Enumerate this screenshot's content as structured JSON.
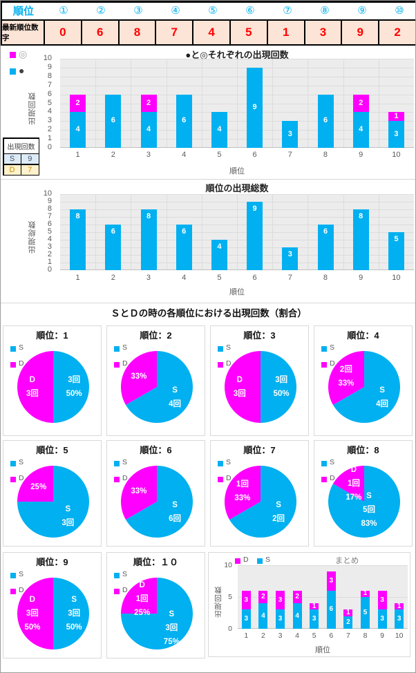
{
  "header_table": {
    "rank_label": "順位",
    "rank_symbols": [
      "①",
      "②",
      "③",
      "④",
      "⑤",
      "⑥",
      "⑦",
      "⑧",
      "⑨",
      "⑩"
    ],
    "latest_label": "最新順位数字",
    "latest_values": [
      "0",
      "6",
      "8",
      "7",
      "4",
      "5",
      "1",
      "3",
      "9",
      "2"
    ]
  },
  "side_table": {
    "header": "出現回数",
    "rows": [
      {
        "label": "S",
        "value": "9",
        "bg": "#DDEBF7",
        "fg": "#44546A"
      },
      {
        "label": "D",
        "value": "7",
        "bg": "#FFF2CC",
        "fg": "#BF8F00"
      }
    ]
  },
  "colors": {
    "cyan": "#00B0F0",
    "magenta": "#FF00FF",
    "value_red": "#FF0000",
    "header_accent": "#00B0F0",
    "peach_bg": "#FCE4D6"
  },
  "chart_data": [
    {
      "id": "symbol_counts",
      "type": "bar-stacked",
      "title": "●と◎それぞれの出現回数",
      "xlabel": "順位",
      "ylabel": "出現回数",
      "ylim": [
        0,
        10
      ],
      "categories": [
        "1",
        "2",
        "3",
        "4",
        "5",
        "6",
        "7",
        "8",
        "9",
        "10"
      ],
      "legend": [
        "◎",
        "●"
      ],
      "series": [
        {
          "name": "●",
          "color": "#00B0F0",
          "values": [
            4,
            6,
            4,
            6,
            4,
            9,
            3,
            6,
            4,
            3
          ]
        },
        {
          "name": "◎",
          "color": "#FF00FF",
          "values": [
            2,
            0,
            2,
            0,
            0,
            0,
            0,
            0,
            2,
            1
          ]
        }
      ]
    },
    {
      "id": "rank_totals",
      "type": "bar",
      "title": "順位の出現総数",
      "xlabel": "順位",
      "ylabel": "出現総数",
      "ylim": [
        0,
        10
      ],
      "categories": [
        "1",
        "2",
        "3",
        "4",
        "5",
        "6",
        "7",
        "8",
        "9",
        "10"
      ],
      "values": [
        8,
        6,
        8,
        6,
        4,
        9,
        3,
        6,
        8,
        5
      ]
    },
    {
      "id": "sd_pies",
      "type": "pie-grid",
      "section_title": "ＳとＤの時の各順位における出現回数（割合）",
      "legend": [
        "S",
        "D"
      ],
      "pies": [
        {
          "title": "順位：1",
          "s": {
            "count": 3,
            "pct": "50%",
            "label_lines": [
              "3回",
              "50%"
            ]
          },
          "d": {
            "count": 3,
            "pct": "50%",
            "label_lines": [
              "D",
              "3回"
            ]
          }
        },
        {
          "title": "順位：2",
          "s": {
            "count": 4,
            "pct": "67%",
            "label_lines": [
              "S",
              "4回"
            ]
          },
          "d": {
            "count": 2,
            "pct": "33%",
            "label_lines": [
              "33%"
            ]
          }
        },
        {
          "title": "順位：3",
          "s": {
            "count": 3,
            "pct": "50%",
            "label_lines": [
              "3回",
              "50%"
            ]
          },
          "d": {
            "count": 3,
            "pct": "50%",
            "label_lines": [
              "D",
              "3回"
            ]
          }
        },
        {
          "title": "順位：4",
          "s": {
            "count": 4,
            "pct": "67%",
            "label_lines": [
              "S",
              "4回"
            ]
          },
          "d": {
            "count": 2,
            "pct": "33%",
            "label_lines": [
              "2回",
              "33%"
            ]
          }
        },
        {
          "title": "順位：5",
          "s": {
            "count": 3,
            "pct": "75%",
            "label_lines": [
              "S",
              "3回"
            ]
          },
          "d": {
            "count": 1,
            "pct": "25%",
            "label_lines": [
              "25%"
            ]
          }
        },
        {
          "title": "順位：6",
          "s": {
            "count": 6,
            "pct": "67%",
            "label_lines": [
              "S",
              "6回"
            ]
          },
          "d": {
            "count": 3,
            "pct": "33%",
            "label_lines": [
              "33%"
            ]
          }
        },
        {
          "title": "順位：7",
          "s": {
            "count": 2,
            "pct": "67%",
            "label_lines": [
              "S",
              "2回"
            ]
          },
          "d": {
            "count": 1,
            "pct": "33%",
            "label_lines": [
              "1回",
              "33%"
            ]
          }
        },
        {
          "title": "順位：8",
          "s": {
            "count": 5,
            "pct": "83%",
            "label_lines": [
              "S",
              "5回",
              "83%"
            ]
          },
          "d": {
            "count": 1,
            "pct": "17%",
            "label_lines": [
              "D",
              "1回",
              "17%"
            ]
          }
        },
        {
          "title": "順位：9",
          "s": {
            "count": 3,
            "pct": "50%",
            "label_lines": [
              "S",
              "3回",
              "50%"
            ]
          },
          "d": {
            "count": 3,
            "pct": "50%",
            "label_lines": [
              "D",
              "3回",
              "50%"
            ]
          }
        },
        {
          "title": "順位：１０",
          "s": {
            "count": 3,
            "pct": "75%",
            "label_lines": [
              "S",
              "3回",
              "75%"
            ]
          },
          "d": {
            "count": 1,
            "pct": "25%",
            "label_lines": [
              "D",
              "1回",
              "25%"
            ]
          }
        }
      ]
    },
    {
      "id": "summary",
      "type": "bar-stacked",
      "title": "まとめ",
      "xlabel": "順位",
      "ylabel": "出現回数",
      "ylim": [
        0,
        10
      ],
      "yticks": [
        0,
        5,
        10
      ],
      "categories": [
        "1",
        "2",
        "3",
        "4",
        "5",
        "6",
        "7",
        "8",
        "9",
        "10"
      ],
      "legend": [
        "D",
        "S"
      ],
      "series": [
        {
          "name": "S",
          "color": "#00B0F0",
          "values": [
            3,
            4,
            3,
            4,
            3,
            6,
            2,
            5,
            3,
            3
          ]
        },
        {
          "name": "D",
          "color": "#FF00FF",
          "values": [
            3,
            2,
            3,
            2,
            1,
            3,
            1,
            1,
            3,
            1
          ]
        }
      ]
    }
  ]
}
